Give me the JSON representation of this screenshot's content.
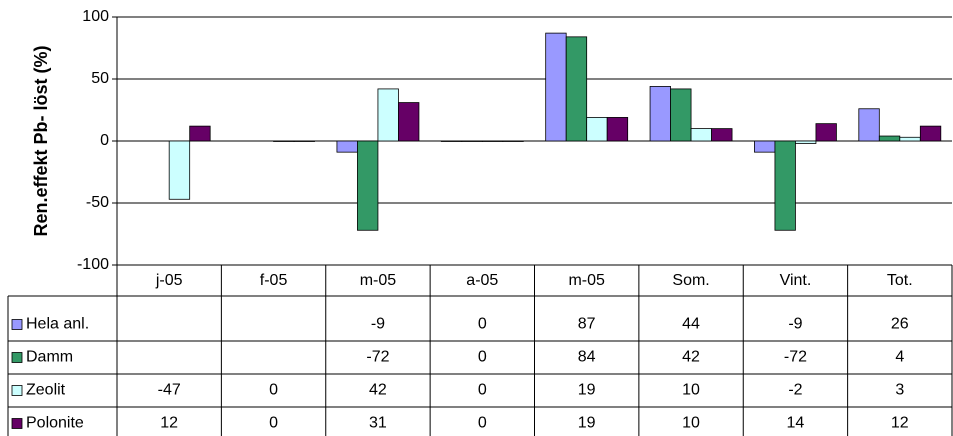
{
  "chart_data": {
    "type": "bar",
    "y_label": "Ren.effekt Pb- löst (%)",
    "categories": [
      "j-05",
      "f-05",
      "m-05",
      "a-05",
      "m-05",
      "Som.",
      "Vint.",
      "Tot."
    ],
    "series": [
      {
        "name": "Hela anl.",
        "color": "#9999ff",
        "values": [
          null,
          null,
          -9,
          0,
          87,
          44,
          -9,
          26
        ]
      },
      {
        "name": "Damm",
        "color": "#339966",
        "values": [
          null,
          null,
          -72,
          0,
          84,
          42,
          -72,
          4
        ]
      },
      {
        "name": "Zeolit",
        "color": "#ccffff",
        "values": [
          -47,
          0,
          42,
          0,
          19,
          10,
          -2,
          3
        ]
      },
      {
        "name": "Polonite",
        "color": "#660066",
        "values": [
          12,
          0,
          31,
          0,
          19,
          10,
          14,
          12
        ]
      }
    ],
    "ylim": [
      -100,
      100
    ],
    "yticks": [
      -100,
      -50,
      0,
      50,
      100
    ],
    "grid": true
  }
}
